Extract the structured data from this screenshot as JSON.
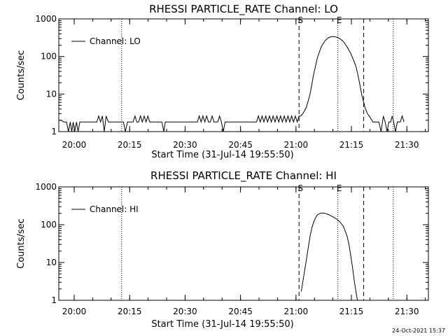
{
  "footer": {
    "timestamp": "24-Oct-2021 15:37"
  },
  "chart_data": [
    {
      "type": "line",
      "title": "RHESSI PARTICLE_RATE Channel: LO",
      "xlabel": "Start Time (31-Jul-14 19:55:50)",
      "ylabel": "Counts/sec",
      "x_unit": "minutes since 19:55:50",
      "xlim": [
        0,
        100
      ],
      "ylim": [
        1,
        1000
      ],
      "yscale": "log",
      "x_ticks": [
        {
          "x": 4.17,
          "label": "20:00"
        },
        {
          "x": 19.17,
          "label": "20:15"
        },
        {
          "x": 34.17,
          "label": "20:30"
        },
        {
          "x": 49.17,
          "label": "20:45"
        },
        {
          "x": 64.17,
          "label": "21:00"
        },
        {
          "x": 79.17,
          "label": "21:15"
        },
        {
          "x": 94.17,
          "label": "21:30"
        }
      ],
      "y_ticks": [
        {
          "y": 1,
          "label": "1"
        },
        {
          "y": 10,
          "label": "10"
        },
        {
          "y": 100,
          "label": "100"
        },
        {
          "y": 1000,
          "label": "1000"
        }
      ],
      "legend": {
        "label": "Channel: LO",
        "position": "top-left"
      },
      "markers": [
        {
          "x": 65.0,
          "label": "S",
          "style": "dashed"
        },
        {
          "x": 75.5,
          "label": "E",
          "style": "dotted"
        },
        {
          "x": 82.5,
          "label": "",
          "style": "dashed"
        },
        {
          "x": 17.0,
          "label": "",
          "style": "dotted"
        },
        {
          "x": 90.5,
          "label": "",
          "style": "dotted"
        }
      ],
      "series": [
        {
          "name": "Channel: LO",
          "x": [
            0.0,
            0.7,
            1.3,
            2.1,
            2.6,
            3.1,
            3.5,
            3.9,
            4.3,
            4.8,
            5.2,
            5.7,
            6.2,
            10.3,
            10.8,
            11.3,
            11.8,
            12.3,
            12.8,
            13.4,
            17.5,
            18.0,
            18.6,
            19.5,
            20.1,
            20.6,
            21.1,
            21.6,
            22.1,
            22.6,
            23.1,
            23.6,
            24.1,
            24.6,
            25.1,
            27.9,
            28.4,
            28.8,
            37.5,
            38.0,
            38.5,
            39.0,
            39.5,
            40.0,
            40.5,
            41.0,
            41.5,
            42.0,
            43.0,
            43.5,
            44.0,
            44.5,
            45.0,
            45.5,
            53.5,
            54.0,
            54.5,
            55.0,
            55.5,
            56.0,
            56.5,
            57.0,
            57.5,
            58.0,
            58.5,
            59.0,
            59.5,
            60.0,
            60.5,
            61.0,
            61.5,
            62.0,
            62.5,
            63.0,
            63.5,
            64.0,
            64.5,
            65.0,
            65.5,
            66.0,
            66.5,
            67.0,
            68.0,
            69.0,
            70.0,
            71.0,
            72.0,
            73.0,
            74.0,
            75.0,
            76.0,
            77.0,
            78.0,
            79.0,
            80.0,
            80.5,
            81.0,
            81.5,
            82.0,
            82.5,
            83.0,
            83.5,
            84.0,
            85.0,
            86.0,
            86.6,
            87.2,
            87.8,
            88.3,
            88.8,
            89.3,
            89.8,
            90.2,
            90.6,
            91.1,
            91.6,
            92.0,
            92.4,
            92.9,
            93.4
          ],
          "y": [
            2,
            2,
            1.8,
            1.8,
            1,
            1.8,
            1,
            1.8,
            1,
            1.8,
            1,
            1.8,
            1.8,
            1.8,
            2.6,
            1.8,
            2.6,
            1,
            2.6,
            1.8,
            1.8,
            1,
            1.8,
            1.8,
            1.8,
            2.6,
            1.8,
            1.8,
            2.6,
            1.8,
            2.6,
            1.8,
            2.6,
            1.8,
            1.8,
            1.8,
            1,
            1.8,
            1.8,
            2.6,
            1.8,
            2.6,
            1.8,
            2.6,
            1.8,
            1.8,
            2.6,
            1.8,
            1.8,
            2.6,
            1.8,
            1,
            1.8,
            1.8,
            1.8,
            2.6,
            1.8,
            2.6,
            1.8,
            2.6,
            1.8,
            2.6,
            1.8,
            2.6,
            1.8,
            2.6,
            1.8,
            2.6,
            1.8,
            2.6,
            1.8,
            2.6,
            1.8,
            2.6,
            1.8,
            2.6,
            1.8,
            2.6,
            2.6,
            3,
            3.6,
            4.5,
            10,
            35,
            95,
            180,
            260,
            320,
            340,
            330,
            300,
            250,
            180,
            120,
            70,
            50,
            30,
            17,
            9,
            6,
            4,
            3,
            2.6,
            1.8,
            1.8,
            1.8,
            1,
            2.6,
            1.8,
            1,
            1.8,
            1.8,
            2.6,
            1.8,
            1,
            1.8,
            1.8,
            1.8,
            2.6,
            1.8
          ]
        }
      ]
    },
    {
      "type": "line",
      "title": "RHESSI PARTICLE_RATE Channel: HI",
      "xlabel": "Start Time (31-Jul-14 19:55:50)",
      "ylabel": "Counts/sec",
      "x_unit": "minutes since 19:55:50",
      "xlim": [
        0,
        100
      ],
      "ylim": [
        1,
        1000
      ],
      "yscale": "log",
      "x_ticks": [
        {
          "x": 4.17,
          "label": "20:00"
        },
        {
          "x": 19.17,
          "label": "20:15"
        },
        {
          "x": 34.17,
          "label": "20:30"
        },
        {
          "x": 49.17,
          "label": "20:45"
        },
        {
          "x": 64.17,
          "label": "21:00"
        },
        {
          "x": 79.17,
          "label": "21:15"
        },
        {
          "x": 94.17,
          "label": "21:30"
        }
      ],
      "y_ticks": [
        {
          "y": 1,
          "label": "1"
        },
        {
          "y": 10,
          "label": "10"
        },
        {
          "y": 100,
          "label": "100"
        },
        {
          "y": 1000,
          "label": "1000"
        }
      ],
      "legend": {
        "label": "Channel: HI",
        "position": "top-left"
      },
      "markers": [
        {
          "x": 65.0,
          "label": "S",
          "style": "dashed"
        },
        {
          "x": 75.5,
          "label": "E",
          "style": "dotted"
        },
        {
          "x": 82.5,
          "label": "",
          "style": "dashed"
        },
        {
          "x": 17.0,
          "label": "",
          "style": "dotted"
        },
        {
          "x": 90.5,
          "label": "",
          "style": "dotted"
        }
      ],
      "series": [
        {
          "name": "Channel: HI",
          "x": [
            65.6,
            66.0,
            66.5,
            67.0,
            67.5,
            68.0,
            68.5,
            69.0,
            69.5,
            70.0,
            71.0,
            72.0,
            73.0,
            74.0,
            75.0,
            76.0,
            77.0,
            78.0,
            78.5,
            79.0,
            79.5,
            80.0,
            80.5,
            80.8
          ],
          "y": [
            1.7,
            3,
            6,
            12,
            25,
            50,
            85,
            120,
            155,
            185,
            205,
            200,
            185,
            165,
            145,
            120,
            90,
            50,
            30,
            15,
            7,
            3,
            1.5,
            1
          ]
        }
      ]
    }
  ]
}
